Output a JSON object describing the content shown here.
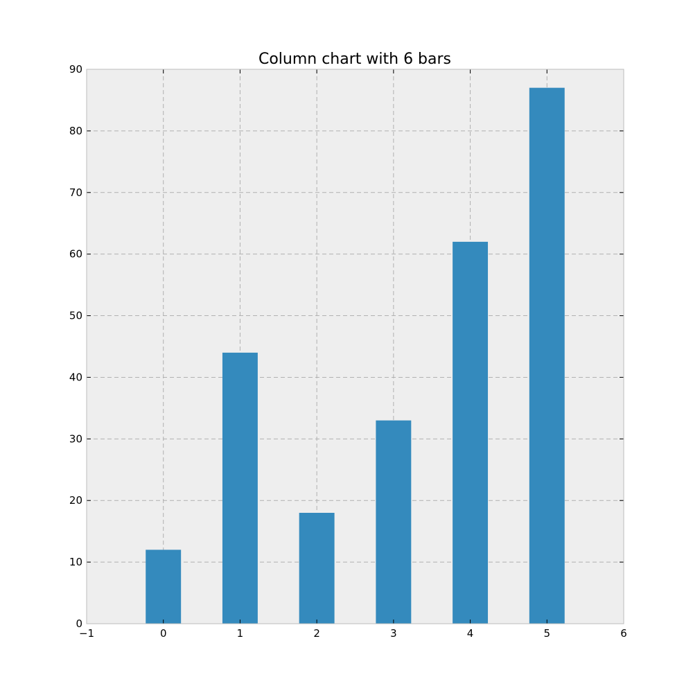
{
  "chart_data": {
    "type": "bar",
    "title": "Column chart with 6 bars",
    "xlabel": "",
    "ylabel": "",
    "x": [
      0,
      1,
      2,
      3,
      4,
      5
    ],
    "values": [
      12,
      44,
      18,
      33,
      62,
      87
    ],
    "xlim": [
      -1,
      6
    ],
    "ylim": [
      0,
      90
    ],
    "xticks": [
      -1,
      0,
      1,
      2,
      3,
      4,
      5,
      6
    ],
    "xtick_labels": [
      "−1",
      "0",
      "1",
      "2",
      "3",
      "4",
      "5",
      "6"
    ],
    "yticks": [
      0,
      10,
      20,
      30,
      40,
      50,
      60,
      70,
      80,
      90
    ],
    "ytick_labels": [
      "0",
      "10",
      "20",
      "30",
      "40",
      "50",
      "60",
      "70",
      "80",
      "90"
    ],
    "grid": true,
    "colors": {
      "bar": "#348abd",
      "plot_background": "#eeeeee"
    }
  }
}
